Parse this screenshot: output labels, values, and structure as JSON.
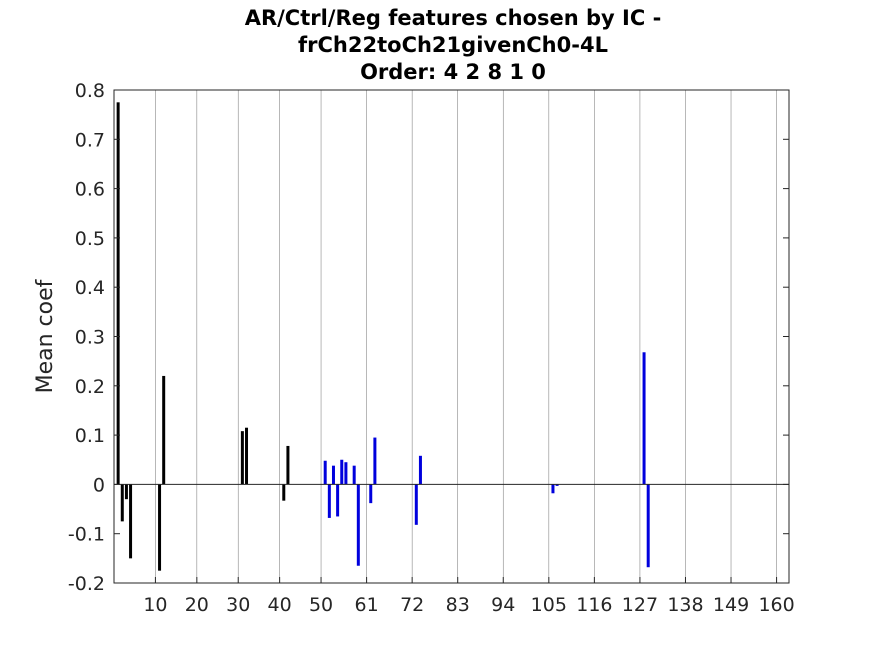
{
  "chart_data": {
    "type": "bar",
    "title": [
      "AR/Ctrl/Reg features chosen by IC -",
      "frCh22toCh21givenCh0-4L",
      "Order: 4 2 8 1 0"
    ],
    "xlabel": "",
    "ylabel": "Mean coef",
    "xlim": [
      0,
      163
    ],
    "ylim": [
      -0.2,
      0.8
    ],
    "yticks": [
      -0.2,
      -0.1,
      0,
      0.1,
      0.2,
      0.3,
      0.4,
      0.5,
      0.6,
      0.7,
      0.8
    ],
    "ytick_labels": [
      "-0.2",
      "-0.1",
      "0",
      "0.1",
      "0.2",
      "0.3",
      "0.4",
      "0.5",
      "0.6",
      "0.7",
      "0.8"
    ],
    "xticks": [
      10,
      20,
      30,
      40,
      50,
      61,
      72,
      83,
      94,
      105,
      116,
      127,
      138,
      149,
      160
    ],
    "xtick_labels": [
      "10",
      "20",
      "30",
      "40",
      "50",
      "61",
      "72",
      "83",
      "94",
      "105",
      "116",
      "127",
      "138",
      "149",
      "160"
    ],
    "grid": "vertical",
    "colors": {
      "ar": "#000000",
      "reg": "#0000dd",
      "grid": "#262626",
      "zero_line": "#262626"
    },
    "series": [
      {
        "color": "#000000",
        "x": [
          1,
          2,
          3,
          4,
          11,
          12,
          31,
          32,
          41,
          42
        ],
        "values": [
          0.775,
          -0.075,
          -0.03,
          -0.15,
          -0.175,
          0.22,
          0.108,
          0.115,
          -0.033,
          0.078
        ]
      },
      {
        "color": "#0000dd",
        "x": [
          51,
          52,
          53,
          54,
          55,
          56,
          58,
          59,
          62,
          63,
          73,
          74,
          106,
          107,
          128,
          129
        ],
        "values": [
          0.048,
          -0.068,
          0.038,
          -0.065,
          0.05,
          0.045,
          0.038,
          -0.165,
          -0.038,
          0.095,
          -0.082,
          0.058,
          -0.018,
          -0.003,
          0.268,
          -0.168
        ]
      }
    ]
  }
}
